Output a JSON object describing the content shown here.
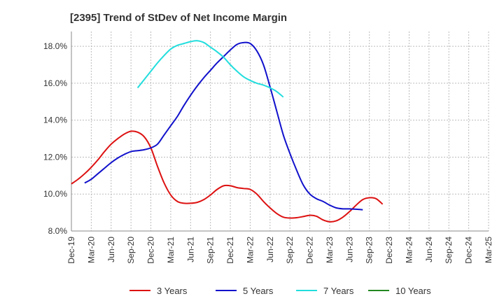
{
  "chart_data": {
    "type": "line",
    "title": "[2395]  Trend of StDev of Net Income Margin",
    "xlabel": "",
    "ylabel": "",
    "ylim": [
      8.0,
      18.8
    ],
    "y_ticks": [
      8.0,
      10.0,
      12.0,
      14.0,
      16.0,
      18.0
    ],
    "y_tick_format": "%",
    "x_tick_labels": [
      "Dec-19",
      "Mar-20",
      "Jun-20",
      "Sep-20",
      "Dec-20",
      "Mar-21",
      "Jun-21",
      "Sep-21",
      "Dec-21",
      "Mar-22",
      "Jun-22",
      "Sep-22",
      "Dec-22",
      "Mar-23",
      "Jun-23",
      "Sep-23",
      "Dec-23",
      "Mar-24",
      "Jun-24",
      "Sep-24",
      "Dec-24",
      "Mar-25"
    ],
    "grid": true,
    "legend_position": "bottom",
    "series": [
      {
        "name": "3 Years",
        "color": "#dd1111",
        "start_index": 0,
        "values": [
          10.55,
          10.8,
          11.1,
          11.45,
          11.85,
          12.3,
          12.7,
          13.0,
          13.25,
          13.4,
          13.35,
          13.1,
          12.5,
          11.5,
          10.6,
          9.95,
          9.6,
          9.5,
          9.5,
          9.55,
          9.7,
          9.95,
          10.25,
          10.45,
          10.45,
          10.35,
          10.3,
          10.25,
          10.0,
          9.6,
          9.25,
          8.95,
          8.75,
          8.7,
          8.72,
          8.78,
          8.85,
          8.8,
          8.6,
          8.5,
          8.55,
          8.75,
          9.05,
          9.4,
          9.7,
          9.8,
          9.75,
          9.45
        ]
      },
      {
        "name": "5 Years",
        "color": "#1111cc",
        "start_index": 2,
        "values": [
          10.6,
          10.8,
          11.1,
          11.4,
          11.7,
          11.95,
          12.15,
          12.3,
          12.35,
          12.4,
          12.5,
          12.7,
          13.2,
          13.7,
          14.2,
          14.8,
          15.35,
          15.85,
          16.3,
          16.7,
          17.1,
          17.45,
          17.8,
          18.1,
          18.2,
          18.15,
          17.75,
          17.0,
          15.8,
          14.5,
          13.2,
          12.2,
          11.3,
          10.5,
          10.0,
          9.75,
          9.6,
          9.4,
          9.25,
          9.2,
          9.2,
          9.18,
          9.15
        ]
      },
      {
        "name": "7 Years",
        "color": "#22dddd",
        "start_index": 10,
        "values": [
          15.75,
          16.2,
          16.65,
          17.1,
          17.5,
          17.85,
          18.05,
          18.15,
          18.25,
          18.3,
          18.2,
          17.95,
          17.7,
          17.4,
          17.0,
          16.65,
          16.35,
          16.15,
          16.0,
          15.9,
          15.75,
          15.55,
          15.25
        ]
      },
      {
        "name": "10 Years",
        "color": "#228822",
        "start_index": 0,
        "values": []
      }
    ]
  }
}
